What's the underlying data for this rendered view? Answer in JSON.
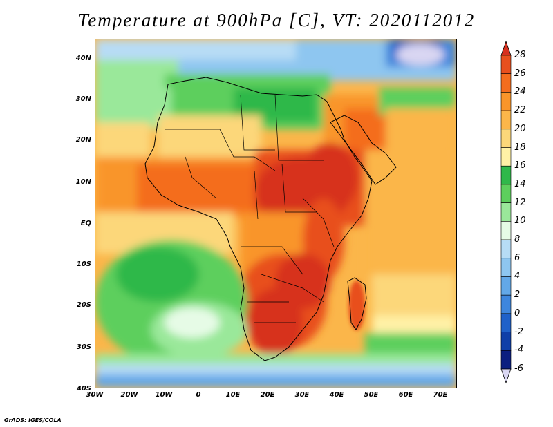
{
  "title": "Temperature at 900hPa [C], VT: 2020112012",
  "credit": "GrADS: IGES/COLA",
  "map": {
    "lat_ticks": [
      "40N",
      "30N",
      "20N",
      "10N",
      "EQ",
      "10S",
      "20S",
      "30S",
      "40S"
    ],
    "lon_ticks": [
      "30W",
      "20W",
      "10W",
      "0",
      "10E",
      "20E",
      "30E",
      "40E",
      "50E",
      "60E",
      "70E"
    ],
    "lon_range": [
      -30,
      75
    ],
    "lat_range": [
      -40,
      46
    ]
  },
  "colorbar": {
    "levels": [
      "28",
      "26",
      "24",
      "22",
      "20",
      "18",
      "16",
      "14",
      "12",
      "10",
      "8",
      "6",
      "4",
      "2",
      "0",
      "-2",
      "-4",
      "-6"
    ],
    "colors": [
      "#d7301f",
      "#e8501e",
      "#f46d1e",
      "#f9952a",
      "#fbb64a",
      "#fcd77a",
      "#fff1a6",
      "#2fb84a",
      "#5dcf5d",
      "#9ae89a",
      "#e6fbe6",
      "#b7dcf5",
      "#8ec6f0",
      "#63a8e8",
      "#3e86dd",
      "#1f61c9",
      "#0f3fa8",
      "#0b1f80",
      "#d9d6f2"
    ]
  }
}
